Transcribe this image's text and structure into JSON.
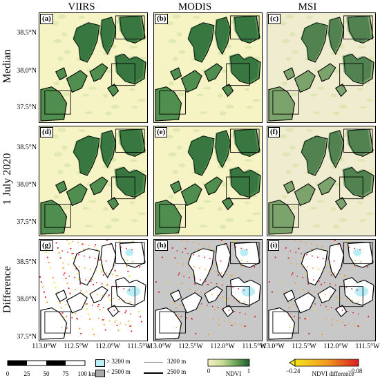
{
  "columns": [
    "VIIRS",
    "MODIS",
    "MSI"
  ],
  "rows": [
    "Median",
    "1 July 2020",
    "Difference"
  ],
  "panel_labels": [
    "(a)",
    "(b)",
    "(c)",
    "(d)",
    "(e)",
    "(f)",
    "(g)",
    "(h)",
    "(i)"
  ],
  "lat_labels": [
    "38.5°N",
    "38.0°N",
    "37.5°N"
  ],
  "lon_labels": [
    "113.0°W",
    "112.5°W",
    "112.0°W",
    "111.5°W"
  ],
  "scalebar": {
    "labels": [
      "0",
      "25",
      "50",
      "75",
      "100 km"
    ]
  },
  "legend": {
    "above_3200": "> 3200 m",
    "below_2500": "< 2500 m",
    "line_3200": "3200 m",
    "line_2500": "2500 m"
  },
  "colorbar_ndvi": {
    "min": "0",
    "max": "1",
    "title": "NDVI"
  },
  "colorbar_diff": {
    "min": "−0.24",
    "max": "−0.08",
    "title": "NDVI difference"
  },
  "colors": {
    "ndvi_low": "#f6f3c4",
    "ndvi_high": "#1d5c2e",
    "diff_low": "#f5e21c",
    "diff_high": "#d81e1e",
    "gray_below": "#c8c8c8",
    "cyan_above": "#b9eef7"
  }
}
